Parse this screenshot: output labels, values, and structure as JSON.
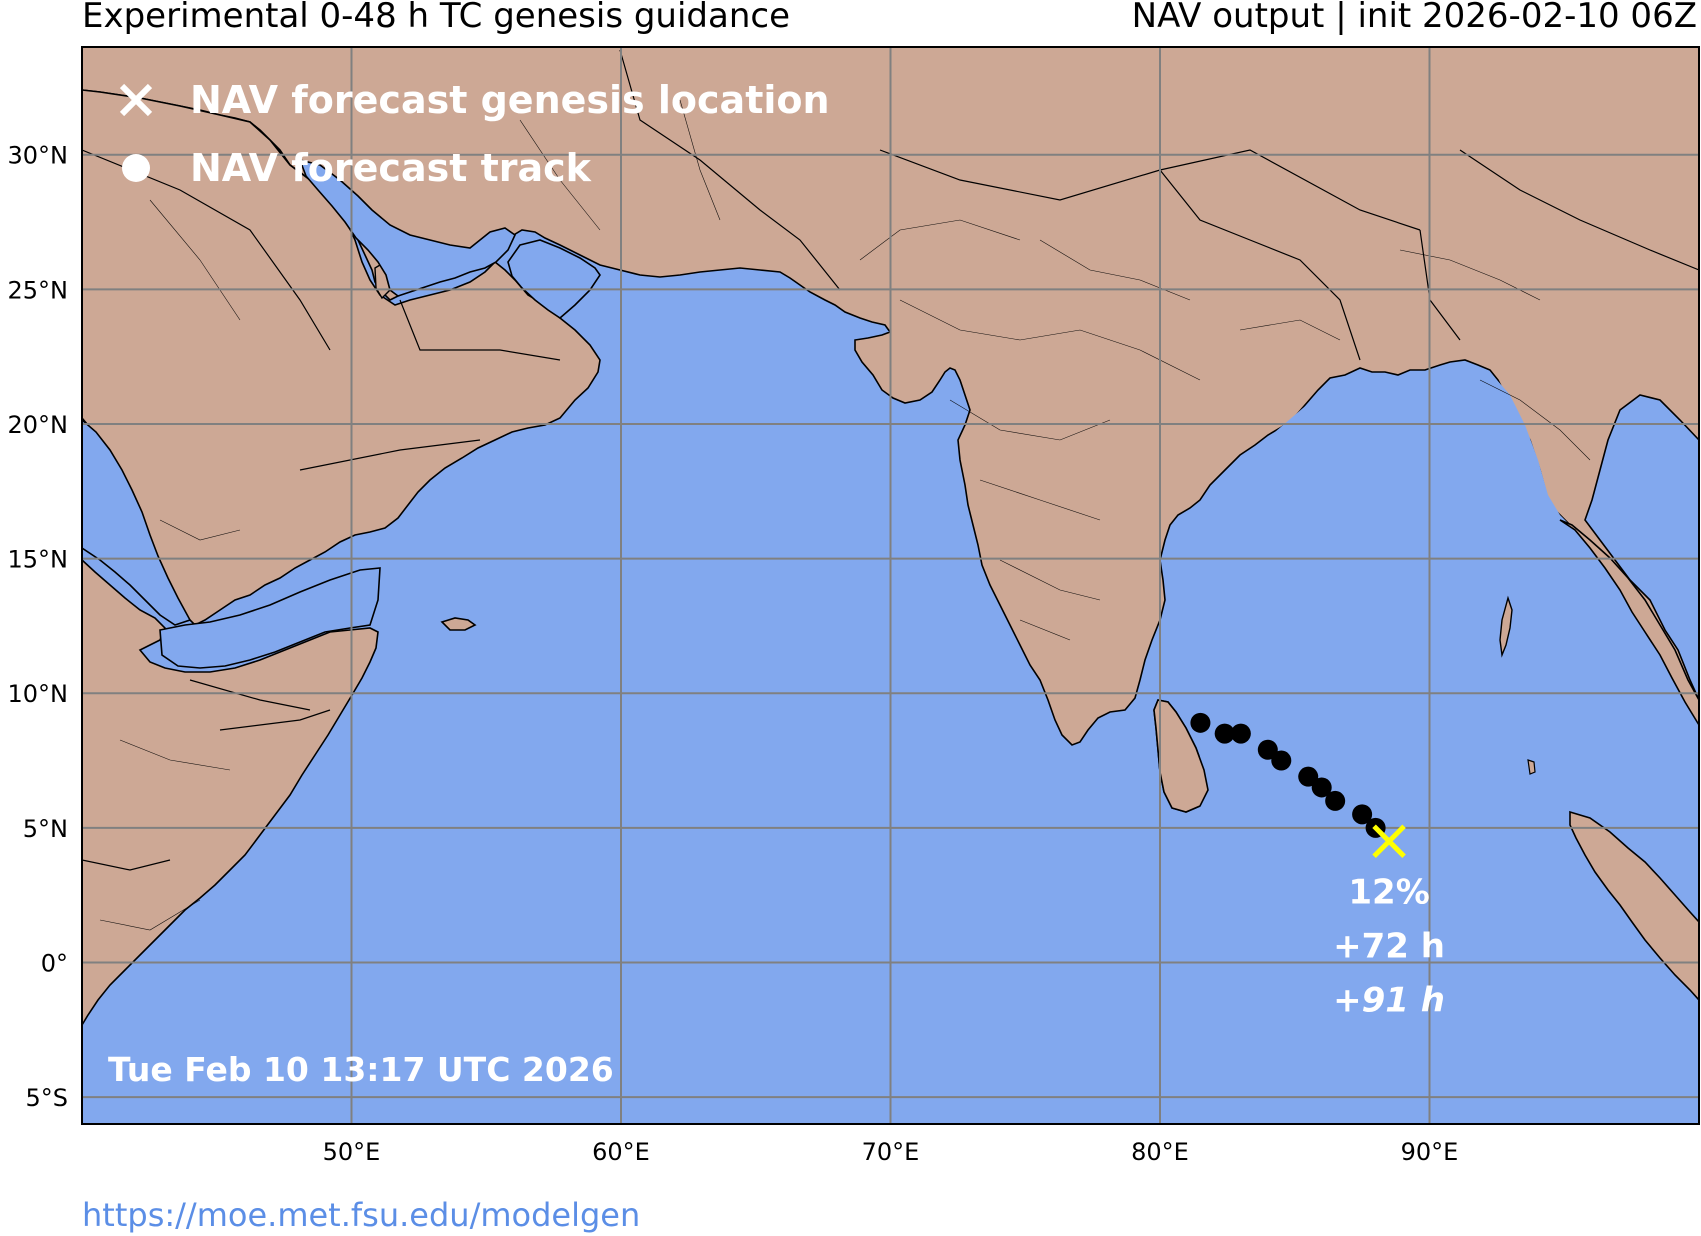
{
  "header": {
    "title_left": "Experimental 0-48 h TC genesis guidance",
    "title_right": "NAV output | init 2026-02-10 06Z"
  },
  "legend": {
    "genesis_label": "NAV forecast genesis location",
    "track_label": "NAV forecast track",
    "genesis_icon": "x-marker-icon",
    "track_icon": "dot-marker-icon"
  },
  "axes": {
    "lon_range": [
      40,
      100
    ],
    "lat_range": [
      -6,
      34
    ],
    "lon_ticks": [
      {
        "value": 50,
        "label": "50°E"
      },
      {
        "value": 60,
        "label": "60°E"
      },
      {
        "value": 70,
        "label": "70°E"
      },
      {
        "value": 80,
        "label": "80°E"
      },
      {
        "value": 90,
        "label": "90°E"
      }
    ],
    "lat_ticks": [
      {
        "value": 30,
        "label": "30°N"
      },
      {
        "value": 25,
        "label": "25°N"
      },
      {
        "value": 20,
        "label": "20°N"
      },
      {
        "value": 15,
        "label": "15°N"
      },
      {
        "value": 10,
        "label": "10°N"
      },
      {
        "value": 5,
        "label": "5°N"
      },
      {
        "value": 0,
        "label": "0°"
      },
      {
        "value": -5,
        "label": "5°S"
      }
    ],
    "grid": true
  },
  "forecast": {
    "track_points": [
      {
        "lon": 81.5,
        "lat": 8.9
      },
      {
        "lon": 82.4,
        "lat": 8.5
      },
      {
        "lon": 83.0,
        "lat": 8.5
      },
      {
        "lon": 84.0,
        "lat": 7.9
      },
      {
        "lon": 84.5,
        "lat": 7.5
      },
      {
        "lon": 85.5,
        "lat": 6.9
      },
      {
        "lon": 86.0,
        "lat": 6.5
      },
      {
        "lon": 86.5,
        "lat": 6.0
      },
      {
        "lon": 87.5,
        "lat": 5.5
      },
      {
        "lon": 88.0,
        "lat": 5.0
      }
    ],
    "genesis": {
      "lon": 88.5,
      "lat": 4.5
    },
    "probability": "12%",
    "lead_time": "+72 h",
    "lead_time_end": "+91 h"
  },
  "timestamp": "Tue Feb 10 13:17 UTC 2026",
  "source_url": "https://moe.met.fsu.edu/modelgen",
  "colors": {
    "ocean": "#82a8ee",
    "land": "#cda895",
    "border": "#000000",
    "grid": "#808080",
    "track": "#000000",
    "genesis_marker": "#ffff00",
    "annotation": "#ffffff",
    "link": "#5b8ee6"
  }
}
